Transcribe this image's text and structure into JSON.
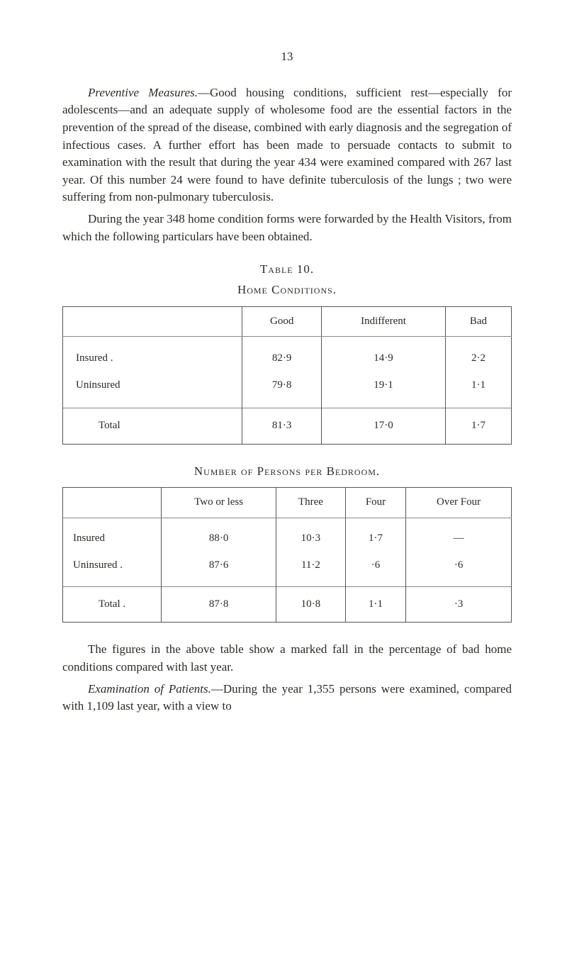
{
  "page_number": "13",
  "paragraphs": {
    "p1_lead_italic": "Preventive Measures.",
    "p1_rest": "—Good housing conditions, sufficient rest—especially for adolescents—and an adequate supply of wholesome food are the essential factors in the prevention of the spread of the disease, combined with early diagnosis and the segregation of infectious cases. A further effort has been made to persuade contacts to submit to examination with the result that during the year 434 were examined compared with 267 last year. Of this number 24 were found to have definite tuberculosis of the lungs ; two were suffering from non-pulmonary tuberculosis.",
    "p2": "During the year 348 home condition forms were forwarded by the Health Visitors, from which the following particulars have been obtained.",
    "p3": "The figures in the above table show a marked fall in the percentage of bad home conditions compared with last year.",
    "p4_lead_italic": "Examination of Patients.",
    "p4_rest": "—During the year 1,355 persons were examined, compared with 1,109 last year, with a view to"
  },
  "table_label": "Table 10.",
  "home_conditions": {
    "title": "Home Conditions.",
    "columns": [
      "",
      "Good",
      "Indifferent",
      "Bad"
    ],
    "rows": [
      {
        "label": "Insured .",
        "good": "82·9",
        "indiff": "14·9",
        "bad": "2·2"
      },
      {
        "label": "Uninsured",
        "good": "79·8",
        "indiff": "19·1",
        "bad": "1·1"
      }
    ],
    "total": {
      "label": "Total",
      "good": "81·3",
      "indiff": "17·0",
      "bad": "1·7"
    }
  },
  "bedroom": {
    "title": "Number of Persons per Bedroom.",
    "columns": [
      "",
      "Two or less",
      "Three",
      "Four",
      "Over Four"
    ],
    "rows": [
      {
        "label": "Insured",
        "c1": "88·0",
        "c2": "10·3",
        "c3": "1·7",
        "c4": "—"
      },
      {
        "label": "Uninsured .",
        "c1": "87·6",
        "c2": "11·2",
        "c3": "·6",
        "c4": "·6"
      }
    ],
    "total": {
      "label": "Total .",
      "c1": "87·8",
      "c2": "10·8",
      "c3": "1·1",
      "c4": "·3"
    }
  }
}
